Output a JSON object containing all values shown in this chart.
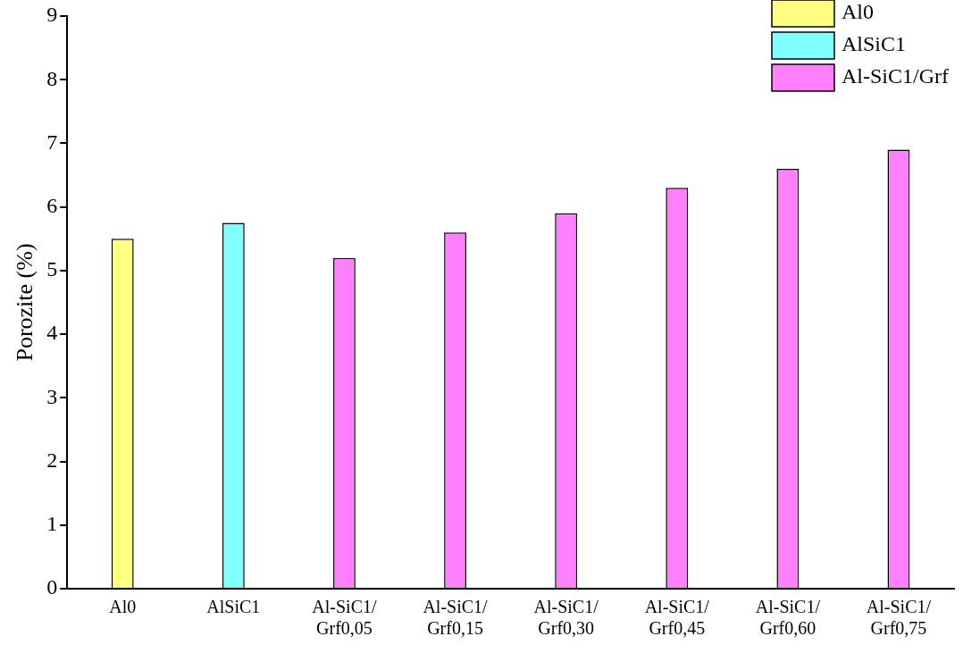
{
  "chart_data": {
    "type": "bar",
    "ylabel": "Porozite (%)",
    "categories": [
      "Al0",
      "AlSiC1",
      "Al-SiC1/Grf0,05",
      "Al-SiC1/Grf0,15",
      "Al-SiC1/Grf0,30",
      "Al-SiC1/Grf0,45",
      "Al-SiC1/Grf0,60",
      "Al-SiC1/Grf0,75"
    ],
    "series": [
      {
        "name": "Al0",
        "color": "#ffff80",
        "values": [
          5.5,
          null,
          null,
          null,
          null,
          null,
          null,
          null
        ]
      },
      {
        "name": "AlSiC1",
        "color": "#80ffff",
        "values": [
          null,
          5.75,
          null,
          null,
          null,
          null,
          null,
          null
        ]
      },
      {
        "name": "Al-SiC1/Grf",
        "color": "#ff80ff",
        "values": [
          null,
          null,
          5.2,
          5.6,
          5.9,
          6.3,
          6.6,
          6.9
        ]
      }
    ],
    "ylim": [
      0,
      9
    ],
    "yticks": [
      0,
      1,
      2,
      3,
      4,
      5,
      6,
      7,
      8,
      9
    ],
    "grid": false,
    "legend": "top right"
  }
}
